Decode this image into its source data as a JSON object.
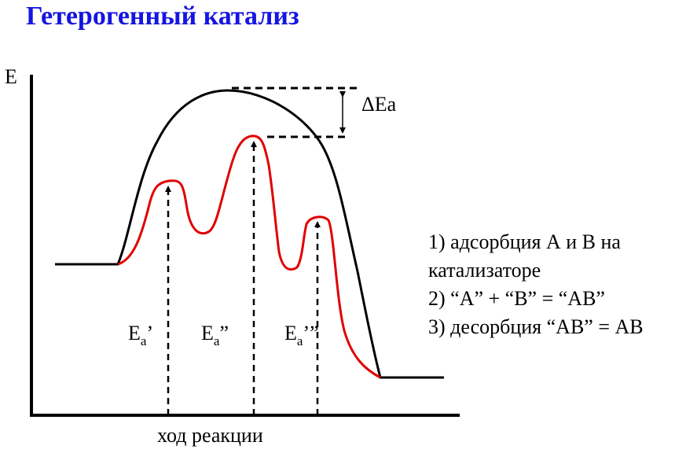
{
  "title": "Гетерогенный катализ",
  "axes": {
    "y_label": "E",
    "x_label": "ход реакции"
  },
  "delta_label": "ΔEa",
  "barrier_labels": [
    {
      "base": "E",
      "sub": "a",
      "mark": "’"
    },
    {
      "base": "E",
      "sub": "a",
      "mark": "”"
    },
    {
      "base": "E",
      "sub": "a",
      "mark": "’”"
    }
  ],
  "steps": [
    "1) адсорбция А и В на",
    "катализаторе",
    "2) “А” + “В” = “АВ”",
    "3) десорбция “АВ” = АВ"
  ],
  "colors": {
    "title": "#1515e0",
    "uncatalyzed_curve": "#000000",
    "catalyzed_curve": "#e00000"
  }
}
